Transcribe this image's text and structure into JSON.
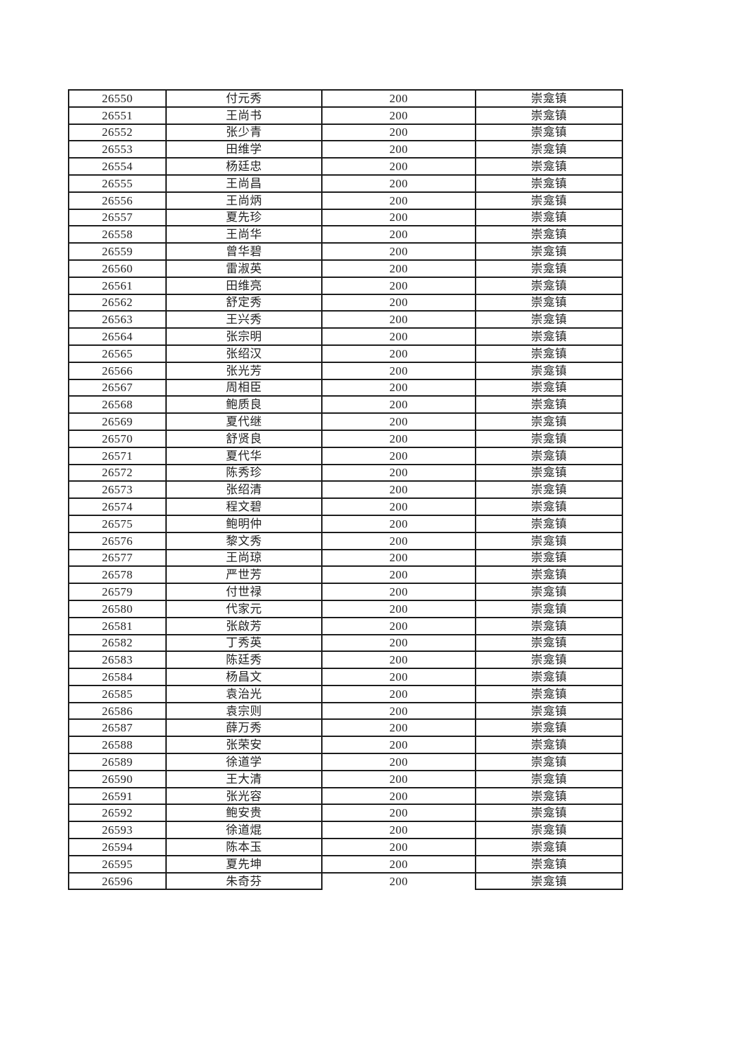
{
  "page": {
    "background_color": "#ffffff",
    "text_color": "#212121",
    "border_color": "#1a1a1a"
  },
  "table": {
    "rows": [
      [
        "26550",
        "付元秀",
        "200",
        "崇龛镇"
      ],
      [
        "26551",
        "王尚书",
        "200",
        "崇龛镇"
      ],
      [
        "26552",
        "张少青",
        "200",
        "崇龛镇"
      ],
      [
        "26553",
        "田维学",
        "200",
        "崇龛镇"
      ],
      [
        "26554",
        "杨廷忠",
        "200",
        "崇龛镇"
      ],
      [
        "26555",
        "王尚昌",
        "200",
        "崇龛镇"
      ],
      [
        "26556",
        "王尚炳",
        "200",
        "崇龛镇"
      ],
      [
        "26557",
        "夏先珍",
        "200",
        "崇龛镇"
      ],
      [
        "26558",
        "王尚华",
        "200",
        "崇龛镇"
      ],
      [
        "26559",
        "曾华碧",
        "200",
        "崇龛镇"
      ],
      [
        "26560",
        "雷淑英",
        "200",
        "崇龛镇"
      ],
      [
        "26561",
        "田维亮",
        "200",
        "崇龛镇"
      ],
      [
        "26562",
        "舒定秀",
        "200",
        "崇龛镇"
      ],
      [
        "26563",
        "王兴秀",
        "200",
        "崇龛镇"
      ],
      [
        "26564",
        "张宗明",
        "200",
        "崇龛镇"
      ],
      [
        "26565",
        "张绍汉",
        "200",
        "崇龛镇"
      ],
      [
        "26566",
        "张光芳",
        "200",
        "崇龛镇"
      ],
      [
        "26567",
        "周相臣",
        "200",
        "崇龛镇"
      ],
      [
        "26568",
        "鲍质良",
        "200",
        "崇龛镇"
      ],
      [
        "26569",
        "夏代继",
        "200",
        "崇龛镇"
      ],
      [
        "26570",
        "舒贤良",
        "200",
        "崇龛镇"
      ],
      [
        "26571",
        "夏代华",
        "200",
        "崇龛镇"
      ],
      [
        "26572",
        "陈秀珍",
        "200",
        "崇龛镇"
      ],
      [
        "26573",
        "张绍清",
        "200",
        "崇龛镇"
      ],
      [
        "26574",
        "程文碧",
        "200",
        "崇龛镇"
      ],
      [
        "26575",
        "鲍明仲",
        "200",
        "崇龛镇"
      ],
      [
        "26576",
        "黎文秀",
        "200",
        "崇龛镇"
      ],
      [
        "26577",
        "王尚琼",
        "200",
        "崇龛镇"
      ],
      [
        "26578",
        "严世芳",
        "200",
        "崇龛镇"
      ],
      [
        "26579",
        "付世禄",
        "200",
        "崇龛镇"
      ],
      [
        "26580",
        "代家元",
        "200",
        "崇龛镇"
      ],
      [
        "26581",
        "张啟芳",
        "200",
        "崇龛镇"
      ],
      [
        "26582",
        "丁秀英",
        "200",
        "崇龛镇"
      ],
      [
        "26583",
        "陈廷秀",
        "200",
        "崇龛镇"
      ],
      [
        "26584",
        "杨昌文",
        "200",
        "崇龛镇"
      ],
      [
        "26585",
        "袁治光",
        "200",
        "崇龛镇"
      ],
      [
        "26586",
        "袁宗则",
        "200",
        "崇龛镇"
      ],
      [
        "26587",
        "薛万秀",
        "200",
        "崇龛镇"
      ],
      [
        "26588",
        "张荣安",
        "200",
        "崇龛镇"
      ],
      [
        "26589",
        "徐道学",
        "200",
        "崇龛镇"
      ],
      [
        "26590",
        "王大清",
        "200",
        "崇龛镇"
      ],
      [
        "26591",
        "张光容",
        "200",
        "崇龛镇"
      ],
      [
        "26592",
        "鲍安贵",
        "200",
        "崇龛镇"
      ],
      [
        "26593",
        "徐道焜",
        "200",
        "崇龛镇"
      ],
      [
        "26594",
        "陈本玉",
        "200",
        "崇龛镇"
      ],
      [
        "26595",
        "夏先坤",
        "200",
        "崇龛镇"
      ],
      [
        "26596",
        "朱奇芬",
        "200",
        "崇龛镇"
      ]
    ]
  }
}
